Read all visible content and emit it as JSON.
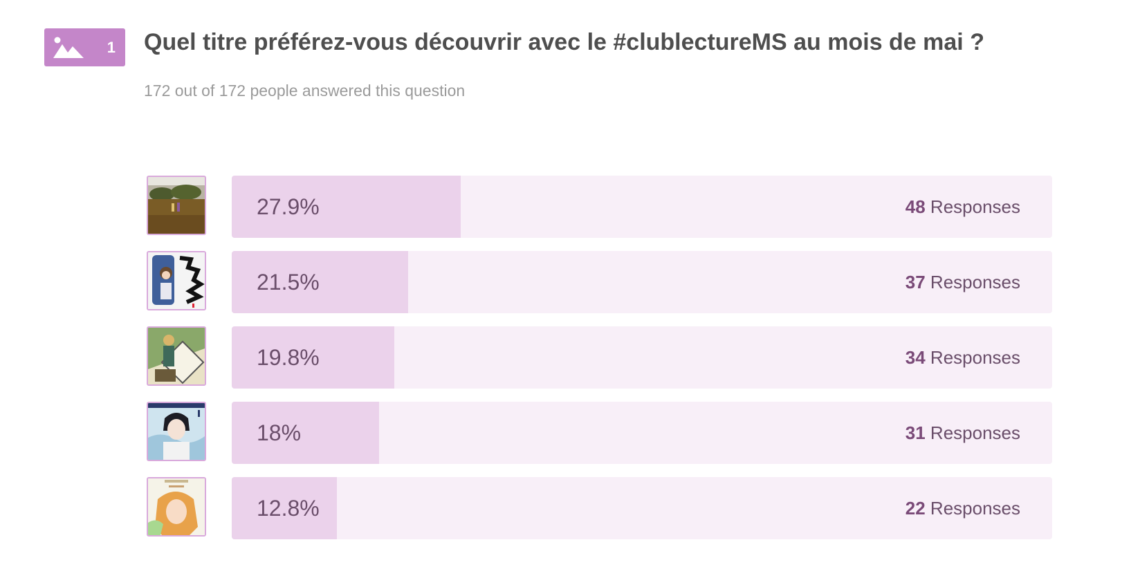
{
  "question": {
    "number": "1",
    "icon": "image-icon",
    "title": "Quel titre préférez-vous découvrir avec le #clublectureMS au mois de mai ?",
    "answered_text": "172 out of 172 people answered this question"
  },
  "responses_label": "Responses",
  "colors": {
    "accent": "#c486c9",
    "bar_fill": "#ebd2eb",
    "bar_track": "#f8eff8",
    "text": "#6a4e6a"
  },
  "options": [
    {
      "percent_label": "27.9%",
      "percent": 27.9,
      "count": "48"
    },
    {
      "percent_label": "21.5%",
      "percent": 21.5,
      "count": "37"
    },
    {
      "percent_label": "19.8%",
      "percent": 19.8,
      "count": "34"
    },
    {
      "percent_label": "18%",
      "percent": 18,
      "count": "31"
    },
    {
      "percent_label": "12.8%",
      "percent": 12.8,
      "count": "22"
    }
  ]
}
